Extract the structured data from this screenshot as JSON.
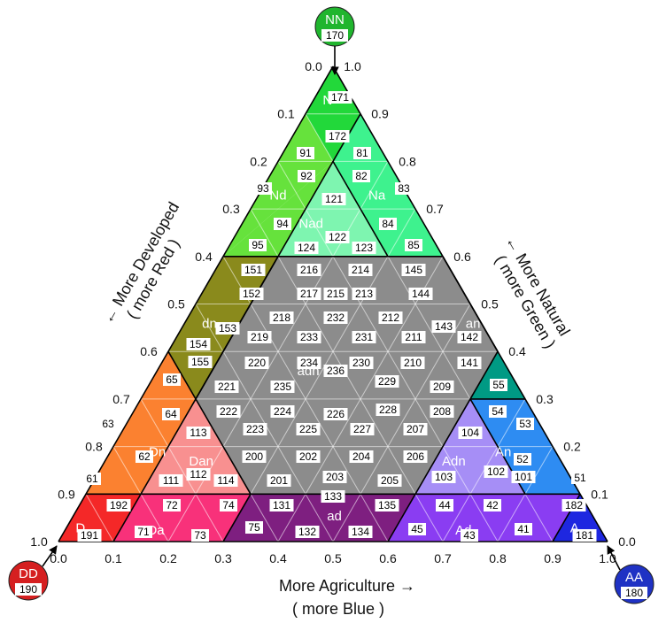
{
  "colors": {
    "N": "#22d83a",
    "Nd": "#66e23c",
    "Na": "#3ef28e",
    "Nad": "#7ef5b0",
    "dn": "#8a8a1c",
    "an": "#009a84",
    "adn": "#8c8c8c",
    "D": "#f42828",
    "Dn": "#fb8130",
    "Dan": "#f89090",
    "Da": "#f8317a",
    "ad": "#7e1f80",
    "Ad": "#8a3df2",
    "Adn": "#a68ef6",
    "An": "#2e8cf2",
    "A": "#1e27e0",
    "Acorner": "#1f32c4",
    "Dcorner": "#d51f20",
    "Ncorner": "#20b52e"
  },
  "corners": {
    "NN": {
      "label": "NN",
      "code": "170"
    },
    "DD": {
      "label": "DD",
      "code": "190"
    },
    "AA": {
      "label": "AA",
      "code": "180"
    }
  },
  "axes": {
    "bottom_title": "More Agriculture →",
    "bottom_subtitle": "( more Blue )",
    "left_title": "← More Developed",
    "left_subtitle": "( more Red )",
    "right_title": "← More Natural",
    "right_subtitle": "( more Green )",
    "bottom_ticks": [
      "0.0",
      "0.1",
      "0.2",
      "0.3",
      "0.4",
      "0.5",
      "0.6",
      "0.7",
      "0.8",
      "0.9",
      "1.0"
    ],
    "left_ticks": [
      "0.0",
      "0.1",
      "0.2",
      "0.3",
      "0.4",
      "0.5",
      "0.6",
      "0.7",
      "0.8",
      "0.9",
      "1.0"
    ],
    "right_ticks": [
      "1.0",
      "0.9",
      "0.8",
      "0.7",
      "0.6",
      "0.5",
      "0.4",
      "0.3",
      "0.2",
      "0.1",
      "0.0"
    ]
  },
  "regions": [
    {
      "name": "N",
      "label": "N"
    },
    {
      "name": "Nd",
      "label": "Nd"
    },
    {
      "name": "Na",
      "label": "Na"
    },
    {
      "name": "Nad",
      "label": "Nad"
    },
    {
      "name": "dn",
      "label": "dn"
    },
    {
      "name": "an",
      "label": "an"
    },
    {
      "name": "adn",
      "label": "adn"
    },
    {
      "name": "D",
      "label": "D"
    },
    {
      "name": "Dn",
      "label": "Dn"
    },
    {
      "name": "Dan",
      "label": "Dan"
    },
    {
      "name": "Da",
      "label": "Da"
    },
    {
      "name": "ad",
      "label": "ad"
    },
    {
      "name": "Ad",
      "label": "Ad"
    },
    {
      "name": "Adn",
      "label": "Adn"
    },
    {
      "name": "An",
      "label": "An"
    },
    {
      "name": "A",
      "label": "A"
    }
  ],
  "codes": [
    "171",
    "172",
    "91",
    "81",
    "92",
    "82",
    "93",
    "83",
    "121",
    "94",
    "84",
    "122",
    "95",
    "124",
    "123",
    "85",
    "151",
    "216",
    "214",
    "145",
    "152",
    "217",
    "215",
    "213",
    "144",
    "218",
    "232",
    "212",
    "143",
    "153",
    "154",
    "219",
    "233",
    "231",
    "211",
    "142",
    "155",
    "220",
    "234",
    "236",
    "230",
    "210",
    "141",
    "65",
    "221",
    "235",
    "adn",
    "229",
    "209",
    "55",
    "222",
    "224",
    "226",
    "228",
    "208",
    "54",
    "63",
    "64",
    "113",
    "223",
    "225",
    "227",
    "207",
    "104",
    "53",
    "62",
    "200",
    "202",
    "204",
    "206",
    "52",
    "112",
    "102",
    "61",
    "111",
    "114",
    "201",
    "203",
    "205",
    "103",
    "101",
    "51",
    "192",
    "72",
    "74",
    "131",
    "133",
    "135",
    "44",
    "42",
    "182",
    "191",
    "71",
    "73",
    "75",
    "132",
    "134",
    "45",
    "43",
    "41",
    "181"
  ]
}
